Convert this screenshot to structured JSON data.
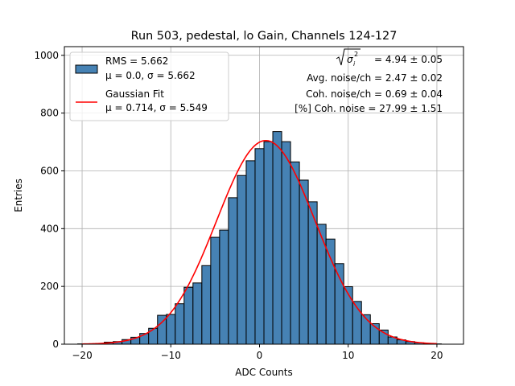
{
  "chart_data": {
    "type": "bar",
    "title": "Run 503, pedestal, lo Gain, Channels 124-127",
    "xlabel": "ADC Counts",
    "ylabel": "Entries",
    "xlim": [
      -22,
      23
    ],
    "ylim": [
      0,
      1030
    ],
    "grid": true,
    "x_ticks": [
      -20,
      -10,
      0,
      10,
      20
    ],
    "x_tick_labels": [
      "−20",
      "−10",
      "0",
      "10",
      "20"
    ],
    "y_ticks": [
      0,
      200,
      400,
      600,
      800,
      1000
    ],
    "y_tick_labels": [
      "0",
      "200",
      "400",
      "600",
      "800",
      "1000"
    ],
    "bin_start": -20.5,
    "bin_width": 1,
    "values": [
      1,
      1,
      2,
      7,
      9,
      16,
      24,
      37,
      55,
      100,
      103,
      140,
      197,
      212,
      272,
      370,
      395,
      507,
      584,
      635,
      677,
      701,
      736,
      701,
      631,
      568,
      493,
      415,
      364,
      279,
      199,
      148,
      102,
      71,
      49,
      25,
      15,
      9,
      5,
      2,
      1
    ],
    "series": [
      {
        "name": "RMS = 5.662",
        "name_line2": "μ = 0.0, σ = 5.662",
        "type": "bar",
        "color": "#4682b4"
      },
      {
        "name": "Gaussian Fit",
        "name_line2": "μ = 0.714, σ = 5.549",
        "type": "line",
        "color": "#ff0000",
        "mu": 0.714,
        "sigma": 5.549,
        "amplitude": 705,
        "x_range": [
          -20,
          20
        ]
      }
    ],
    "legend_position": "top-left",
    "annotations": [
      "= 4.94 ± 0.05",
      "Avg. noise/ch = 2.47 ± 0.02",
      "Coh. noise/ch = 0.69 ± 0.04",
      "[%] Coh. noise = 27.99 ± 1.51"
    ]
  }
}
